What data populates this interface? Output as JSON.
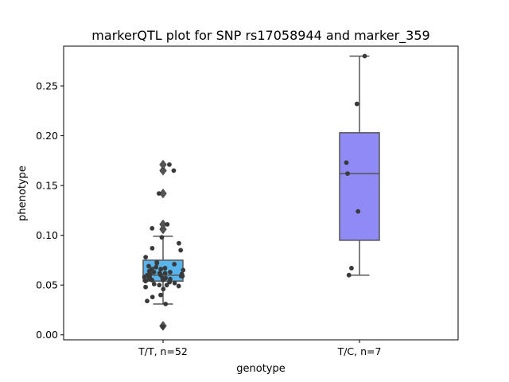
{
  "chart_data": {
    "type": "boxplot",
    "title": "markerQTL plot for SNP rs17058944 and marker_359",
    "xlabel": "genotype",
    "ylabel": "phenotype",
    "ylim": [
      -0.005,
      0.29
    ],
    "yticks": [
      "0.00",
      "0.05",
      "0.10",
      "0.15",
      "0.20",
      "0.25"
    ],
    "grid": false,
    "legend": "none",
    "categories": [
      "T/T, n=52",
      "T/C, n=7"
    ],
    "colors": {
      "box_TT": "#57b4ec",
      "box_TC": "#8f8af4",
      "edge": "#555555",
      "point": "#3a3a3a"
    },
    "boxes": [
      {
        "category": "T/T, n=52",
        "whisker_low": 0.031,
        "q1": 0.054,
        "median": 0.06,
        "q3": 0.075,
        "whisker_high": 0.099,
        "outliers": [
          0.009,
          0.106,
          0.111,
          0.142,
          0.165,
          0.171
        ]
      },
      {
        "category": "T/C, n=7",
        "whisker_low": 0.06,
        "q1": 0.095,
        "median": 0.162,
        "q3": 0.203,
        "whisker_high": 0.28,
        "outliers": []
      }
    ],
    "points": [
      {
        "category": "T/T, n=52",
        "y": [
          0.008,
          0.031,
          0.034,
          0.038,
          0.04,
          0.046,
          0.048,
          0.049,
          0.05,
          0.05,
          0.051,
          0.052,
          0.053,
          0.054,
          0.055,
          0.055,
          0.056,
          0.056,
          0.057,
          0.057,
          0.058,
          0.058,
          0.059,
          0.059,
          0.06,
          0.06,
          0.061,
          0.061,
          0.062,
          0.062,
          0.063,
          0.063,
          0.064,
          0.065,
          0.066,
          0.066,
          0.067,
          0.068,
          0.069,
          0.071,
          0.072,
          0.073,
          0.078,
          0.085,
          0.087,
          0.092,
          0.098,
          0.107,
          0.111,
          0.142,
          0.165,
          0.171
        ]
      },
      {
        "category": "T/C, n=7",
        "y": [
          0.06,
          0.067,
          0.124,
          0.162,
          0.173,
          0.232,
          0.28
        ]
      }
    ]
  }
}
